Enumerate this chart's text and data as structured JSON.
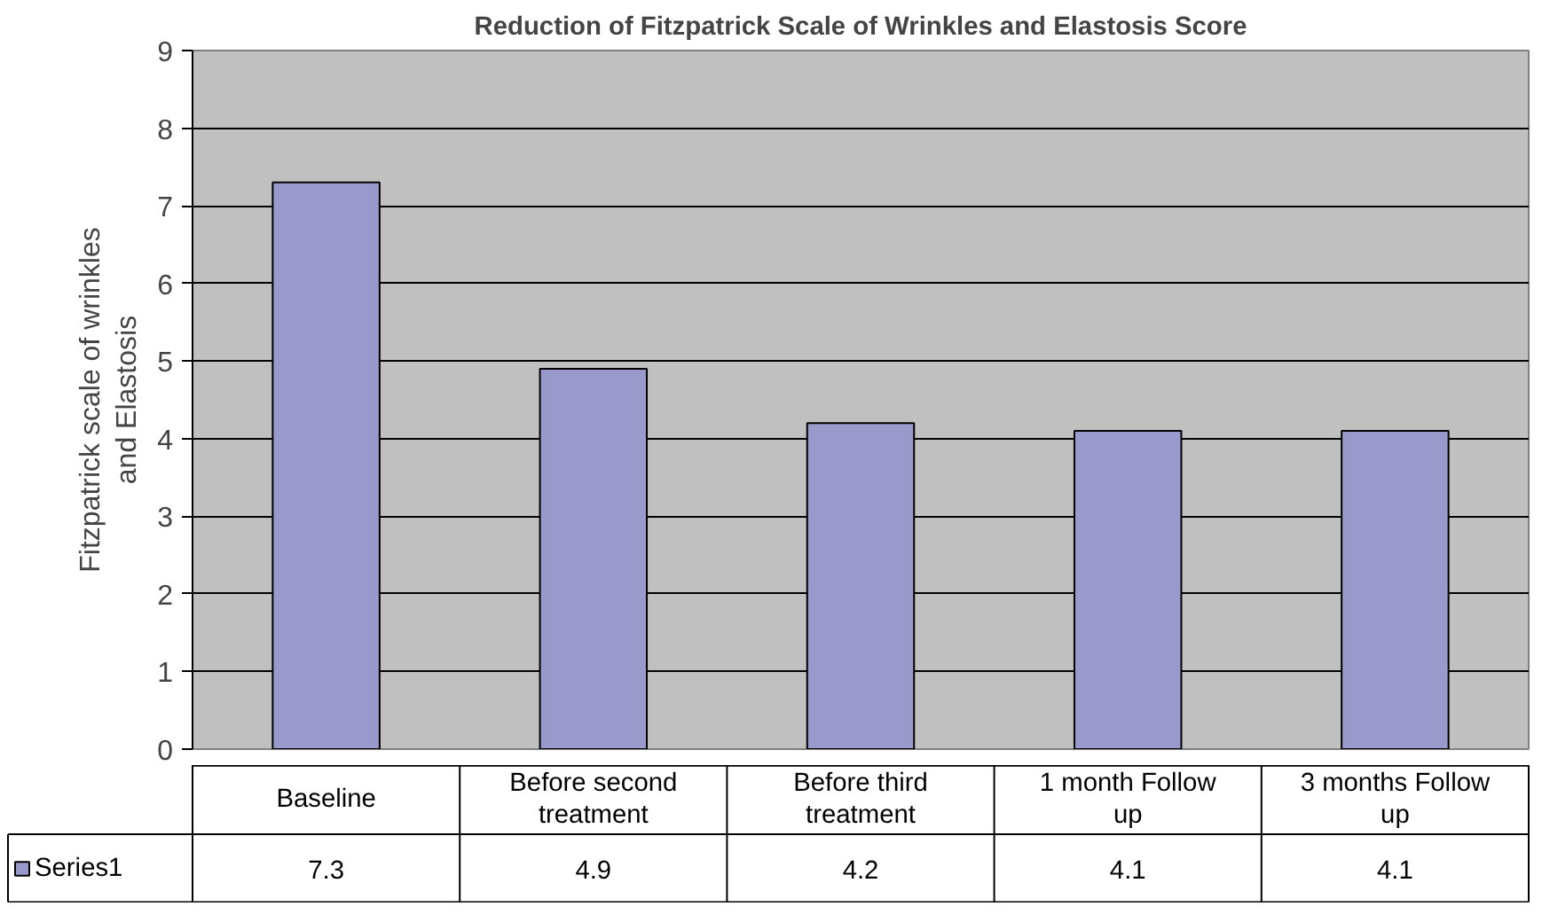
{
  "chart_data": {
    "type": "bar",
    "title": "Reduction of Fitzpatrick Scale of Wrinkles and Elastosis Score",
    "ylabel": "Fitzpatrick scale of wrinkles and Elastosis",
    "categories": [
      "Baseline",
      "Before second treatment",
      "Before third treatment",
      "1 month Follow up",
      "3 months Follow up"
    ],
    "series": [
      {
        "name": "Series1",
        "color": "#9999cc",
        "values": [
          7.3,
          4.9,
          4.2,
          4.1,
          4.1
        ]
      }
    ],
    "ylim": [
      0,
      9
    ],
    "yticks": [
      0,
      1,
      2,
      3,
      4,
      5,
      6,
      7,
      8,
      9
    ],
    "grid": "y",
    "legend": "bottom",
    "data_labels": true
  }
}
